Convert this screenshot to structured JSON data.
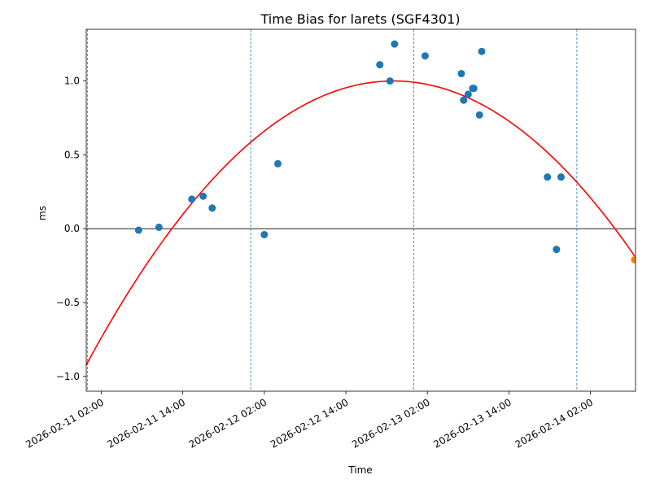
{
  "chart_data": {
    "type": "scatter",
    "title": "Time Bias for larets (SGF4301)",
    "xlabel": "Time",
    "ylabel": "ms",
    "x_axis_kind": "datetime",
    "xlim": [
      "2026-02-10T23:48",
      "2026-02-14T08:38"
    ],
    "ylim": [
      -1.1,
      1.35
    ],
    "x_ticks": [
      "2026-02-11 02:00",
      "2026-02-11 14:00",
      "2026-02-12 02:00",
      "2026-02-12 14:00",
      "2026-02-13 02:00",
      "2026-02-13 14:00",
      "2026-02-14 02:00"
    ],
    "y_ticks": [
      -1.0,
      -0.5,
      0.0,
      0.5,
      1.0
    ],
    "y_tick_labels": [
      "−1.0",
      "−0.5",
      "0.0",
      "0.5",
      "1.0"
    ],
    "zero_line": 0,
    "day_boundary_lines": [
      "2026-02-11T00:00",
      "2026-02-12T00:00",
      "2026-02-13T00:00",
      "2026-02-14T00:00"
    ],
    "series": [
      {
        "kind": "points",
        "color": "#1f77b4",
        "points": [
          {
            "x": "2026-02-11T07:30",
            "y": -0.01
          },
          {
            "x": "2026-02-11T10:30",
            "y": 0.01
          },
          {
            "x": "2026-02-11T15:20",
            "y": 0.2
          },
          {
            "x": "2026-02-11T17:00",
            "y": 0.22
          },
          {
            "x": "2026-02-11T18:20",
            "y": 0.14
          },
          {
            "x": "2026-02-12T02:00",
            "y": -0.04
          },
          {
            "x": "2026-02-12T04:00",
            "y": 0.44
          },
          {
            "x": "2026-02-12T19:00",
            "y": 1.11
          },
          {
            "x": "2026-02-12T20:30",
            "y": 1.0
          },
          {
            "x": "2026-02-12T21:10",
            "y": 1.25
          },
          {
            "x": "2026-02-13T01:40",
            "y": 1.17
          },
          {
            "x": "2026-02-13T07:00",
            "y": 1.05
          },
          {
            "x": "2026-02-13T07:20",
            "y": 0.87
          },
          {
            "x": "2026-02-13T08:00",
            "y": 0.91
          },
          {
            "x": "2026-02-13T08:40",
            "y": 0.95
          },
          {
            "x": "2026-02-13T08:50",
            "y": 0.95
          },
          {
            "x": "2026-02-13T09:40",
            "y": 0.77
          },
          {
            "x": "2026-02-13T10:00",
            "y": 1.2
          },
          {
            "x": "2026-02-13T19:40",
            "y": 0.35
          },
          {
            "x": "2026-02-13T21:00",
            "y": -0.14
          },
          {
            "x": "2026-02-13T21:40",
            "y": 0.35
          }
        ]
      },
      {
        "kind": "points",
        "color": "#ff7f0e",
        "points": [
          {
            "x": "2026-02-14T08:30",
            "y": -0.21
          }
        ]
      },
      {
        "kind": "fit_curve",
        "color": "#ff0000",
        "curve": "quadratic",
        "start": {
          "x": "2026-02-10T23:00",
          "y": -0.99
        },
        "vertex": {
          "x": "2026-02-12T21:00",
          "y": 1.0
        },
        "end": {
          "x": "2026-02-14T08:30",
          "y": -0.21
        }
      }
    ],
    "grid": false,
    "legend": "none"
  }
}
